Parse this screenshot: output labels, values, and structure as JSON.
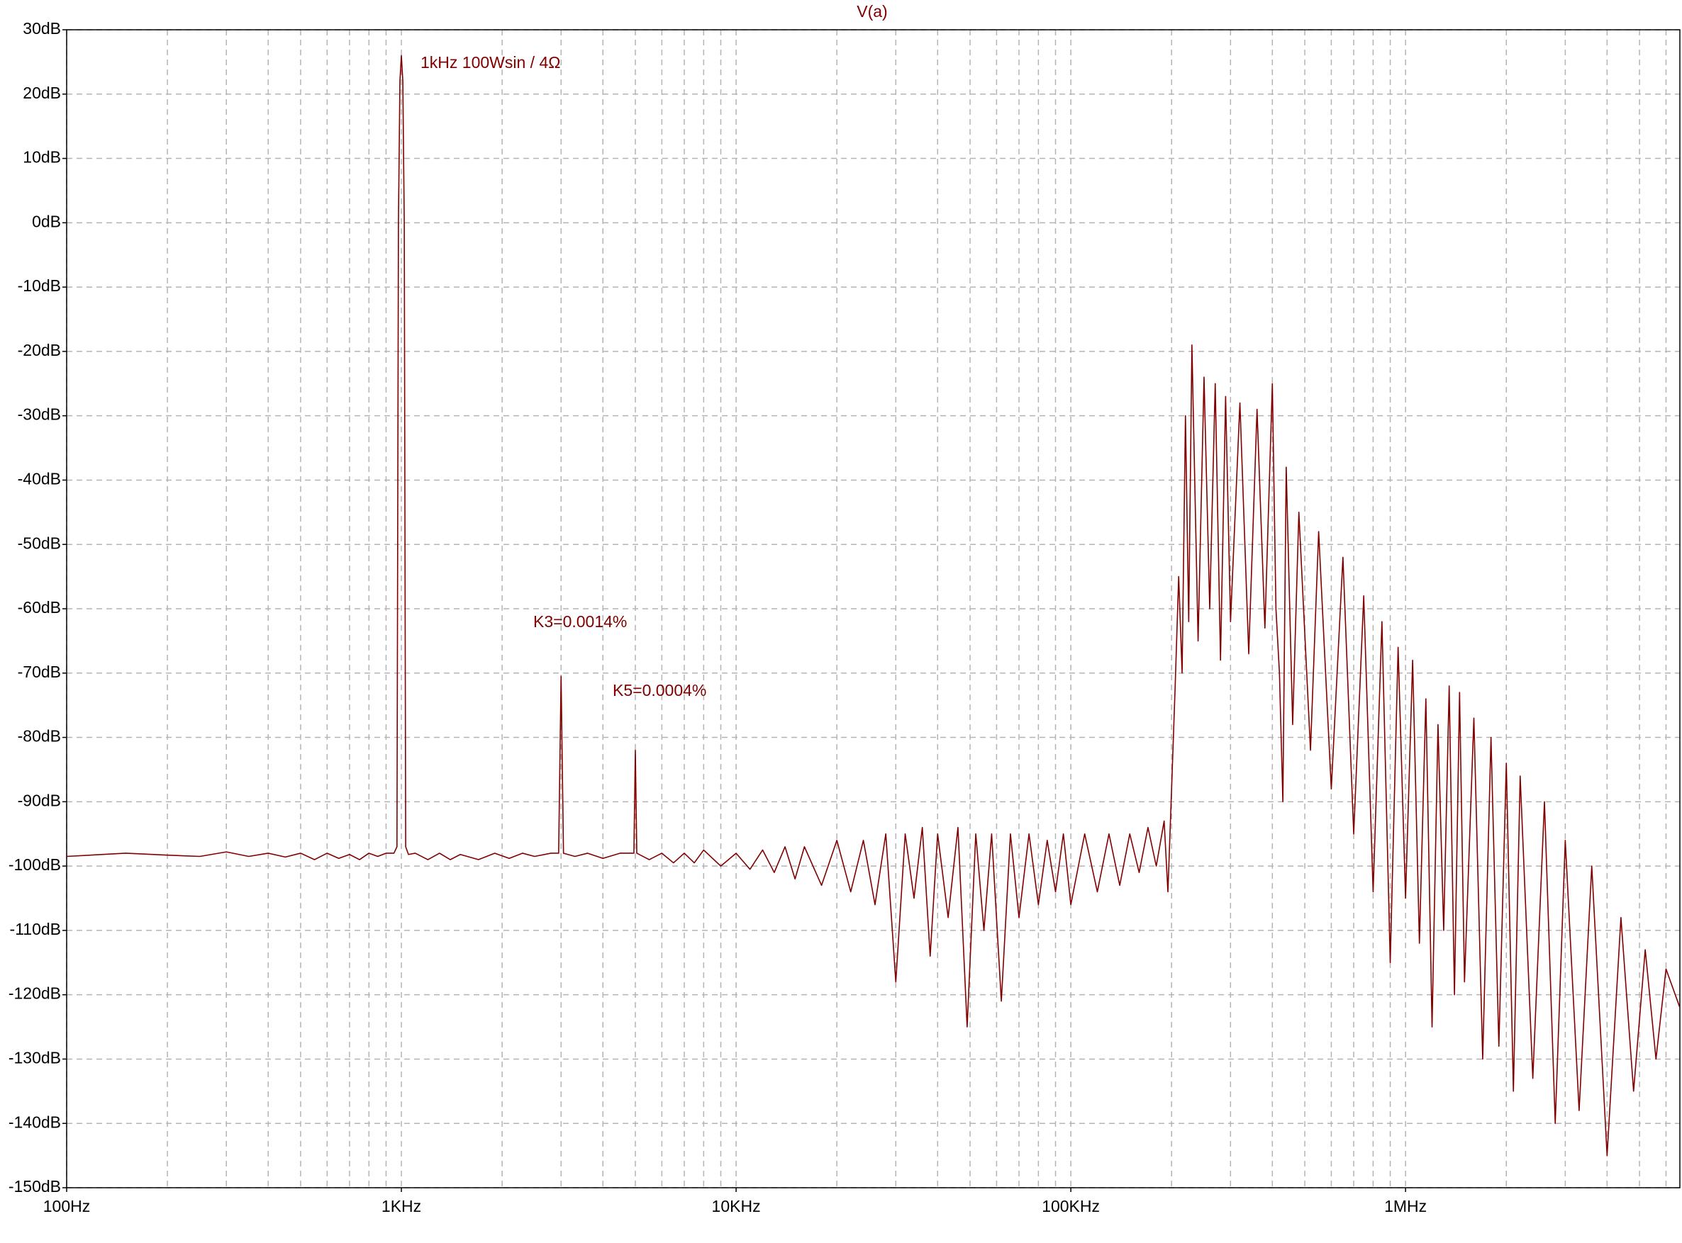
{
  "chart_data": {
    "type": "line",
    "title": "V(a)",
    "x": [
      100,
      150,
      200,
      250,
      300,
      350,
      400,
      450,
      500,
      550,
      600,
      650,
      700,
      750,
      800,
      850,
      900,
      950,
      970,
      980,
      990,
      1000,
      1010,
      1020,
      1030,
      1050,
      1100,
      1200,
      1300,
      1400,
      1500,
      1700,
      1900,
      2100,
      2300,
      2500,
      2800,
      2950,
      3000,
      3050,
      3300,
      3600,
      4000,
      4500,
      4950,
      5000,
      5050,
      5500,
      6000,
      6500,
      7000,
      7500,
      8000,
      9000,
      10000,
      11000,
      12000,
      13000,
      14000,
      15000,
      16000,
      18000,
      20000,
      22000,
      24000,
      26000,
      28000,
      30000,
      32000,
      34000,
      36000,
      38000,
      40000,
      43000,
      46000,
      49000,
      52000,
      55000,
      58000,
      62000,
      66000,
      70000,
      75000,
      80000,
      85000,
      90000,
      95000,
      100000,
      110000,
      120000,
      130000,
      140000,
      150000,
      160000,
      170000,
      180000,
      190000,
      195000,
      200000,
      205000,
      210000,
      215000,
      220000,
      225000,
      230000,
      240000,
      250000,
      260000,
      270000,
      280000,
      290000,
      300000,
      320000,
      340000,
      360000,
      380000,
      400000,
      410000,
      420000,
      430000,
      440000,
      460000,
      480000,
      520000,
      550000,
      600000,
      650000,
      700000,
      750000,
      800000,
      850000,
      900000,
      950000,
      1000000,
      1050000,
      1100000,
      1150000,
      1200000,
      1250000,
      1300000,
      1350000,
      1400000,
      1450000,
      1500000,
      1600000,
      1700000,
      1800000,
      1900000,
      2000000,
      2100000,
      2200000,
      2400000,
      2600000,
      2800000,
      3000000,
      3300000,
      3600000,
      4000000,
      4400000,
      4800000,
      5200000,
      5600000,
      6000000,
      6600000
    ],
    "values": [
      -98.5,
      -98,
      -98.3,
      -98.5,
      -97.8,
      -98.5,
      -98,
      -98.6,
      -98,
      -99,
      -98,
      -98.8,
      -98.2,
      -99,
      -98,
      -98.5,
      -98,
      -98,
      -97,
      0,
      22,
      26,
      22,
      0,
      -97,
      -98.2,
      -98,
      -99,
      -98,
      -99,
      -98.2,
      -99,
      -98,
      -98.8,
      -98,
      -98.5,
      -98,
      -98,
      -70.5,
      -98,
      -98.5,
      -98,
      -98.8,
      -98,
      -98,
      -82,
      -98,
      -99,
      -98,
      -99.5,
      -98,
      -99.5,
      -97.5,
      -100,
      -98,
      -100.5,
      -97.5,
      -101,
      -97,
      -102,
      -97,
      -103,
      -96,
      -104,
      -96,
      -106,
      -95,
      -118,
      -95,
      -105,
      -94,
      -114,
      -95,
      -108,
      -94,
      -125,
      -95,
      -110,
      -95,
      -121,
      -95,
      -108,
      -95,
      -106,
      -96,
      -104,
      -95,
      -106,
      -95,
      -104,
      -95,
      -103,
      -95,
      -101,
      -94,
      -100,
      -93,
      -104,
      -88,
      -72,
      -55,
      -70,
      -30,
      -62,
      -19,
      -65,
      -24,
      -60,
      -25,
      -68,
      -27,
      -62,
      -28,
      -67,
      -29,
      -63,
      -25,
      -60,
      -70,
      -90,
      -38,
      -78,
      -45,
      -82,
      -48,
      -88,
      -52,
      -95,
      -58,
      -104,
      -62,
      -115,
      -66,
      -105,
      -68,
      -112,
      -74,
      -125,
      -78,
      -110,
      -72,
      -120,
      -73,
      -118,
      -77,
      -130,
      -80,
      -128,
      -84,
      -135,
      -86,
      -133,
      -90,
      -140,
      -96,
      -138,
      -100,
      -145,
      -108,
      -135,
      -113,
      -130,
      -116,
      -122
    ],
    "color": "#800000",
    "xlog": true,
    "xlim": [
      100,
      6600000
    ],
    "xticks": [
      {
        "value": 100,
        "label": "100Hz"
      },
      {
        "value": 1000,
        "label": "1KHz"
      },
      {
        "value": 10000,
        "label": "10KHz"
      },
      {
        "value": 100000,
        "label": "100KHz"
      },
      {
        "value": 1000000,
        "label": "1MHz"
      }
    ],
    "ylim": [
      -150,
      30
    ],
    "yticks": [
      {
        "value": -150,
        "label": "-150dB"
      },
      {
        "value": -140,
        "label": "-140dB"
      },
      {
        "value": -130,
        "label": "-130dB"
      },
      {
        "value": -120,
        "label": "-120dB"
      },
      {
        "value": -110,
        "label": "-110dB"
      },
      {
        "value": -100,
        "label": "-100dB"
      },
      {
        "value": -90,
        "label": "-90dB"
      },
      {
        "value": -80,
        "label": "-80dB"
      },
      {
        "value": -70,
        "label": "-70dB"
      },
      {
        "value": -60,
        "label": "-60dB"
      },
      {
        "value": -50,
        "label": "-50dB"
      },
      {
        "value": -40,
        "label": "-40dB"
      },
      {
        "value": -30,
        "label": "-30dB"
      },
      {
        "value": -20,
        "label": "-20dB"
      },
      {
        "value": -10,
        "label": "-10dB"
      },
      {
        "value": 0,
        "label": "0dB"
      },
      {
        "value": 10,
        "label": "10dB"
      },
      {
        "value": 20,
        "label": "20dB"
      },
      {
        "value": 30,
        "label": "30dB"
      }
    ],
    "grid": true,
    "minor_grid": true,
    "annotations": [
      "1kHz  100Wsin / 4Ω",
      "K3=0.0014%",
      "K5=0.0004%"
    ]
  }
}
